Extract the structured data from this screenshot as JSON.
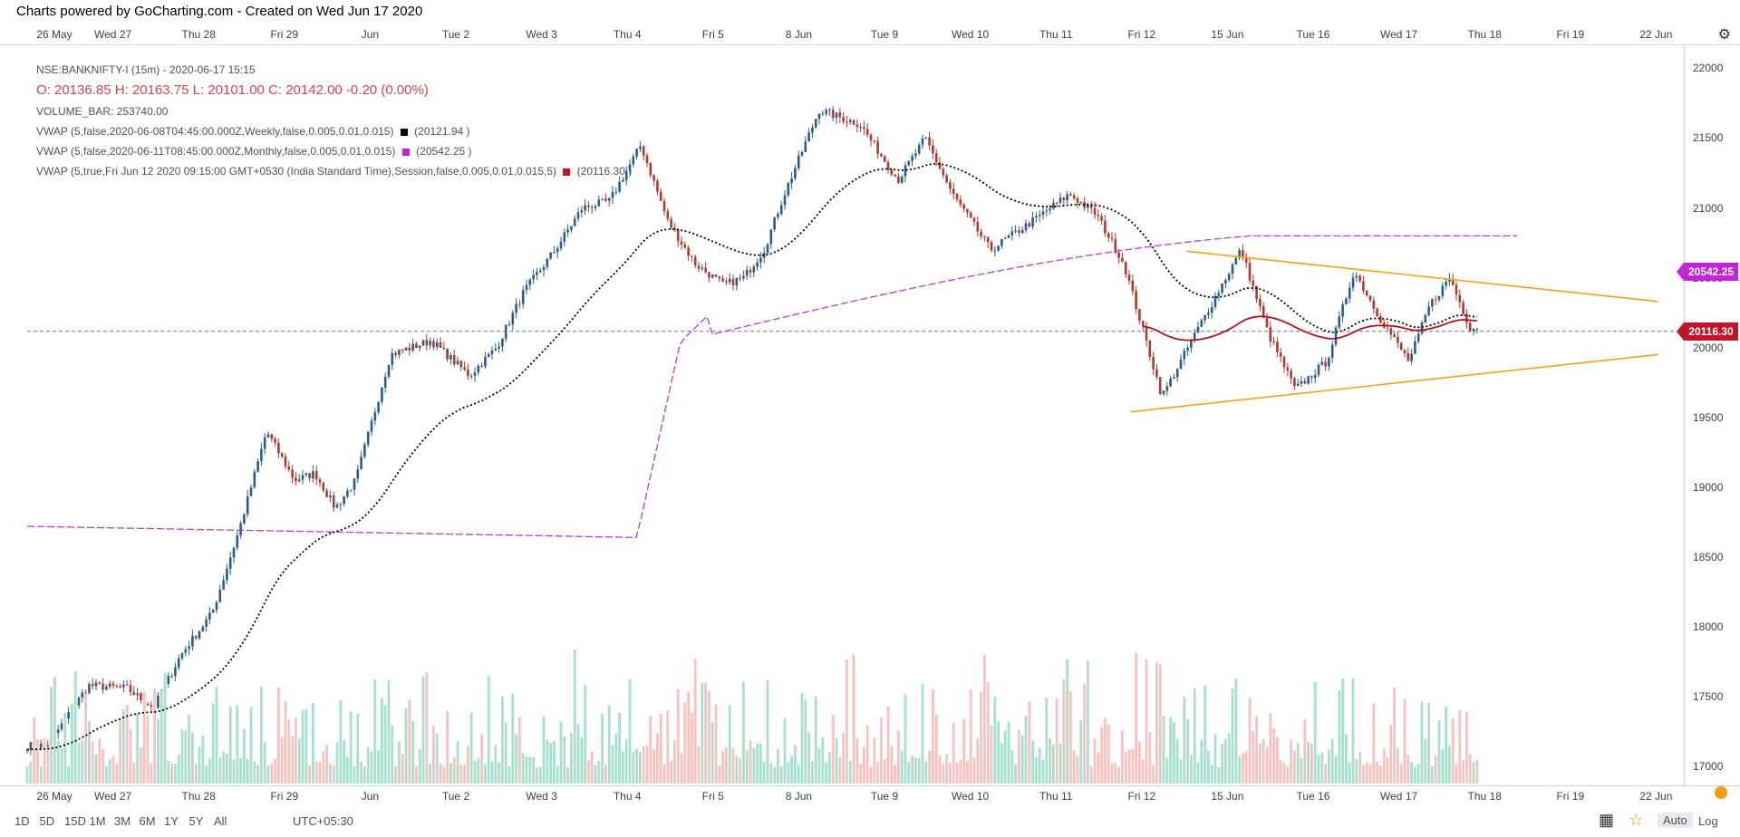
{
  "credit": "Charts powered by GoCharting.com - Created on Wed Jun 17 2020",
  "x_labels": [
    "26 May",
    "Wed 27",
    "Thu 28",
    "Fri 29",
    "Jun",
    "Tue 2",
    "Wed 3",
    "Thu 4",
    "Fri 5",
    "8 Jun",
    "Tue 9",
    "Wed 10",
    "Thu 11",
    "Fri 12",
    "15 Jun",
    "Tue 16",
    "Wed 17",
    "Thu 18",
    "Fri 19",
    "22 Jun"
  ],
  "legend": {
    "symbol": "NSE:BANKNIFTY-I (15m) - 2020-06-17 15:15",
    "ohlc": "O: 20136.85  H: 20163.75  L: 20101.00  C: 20142.00   -0.20  (0.00%)",
    "volume": "VOLUME_BAR: 253740.00",
    "vwap_weekly": "VWAP (5,false,2020-06-08T04:45:00.000Z,Weekly,false,0.005,0.01,0.015)",
    "vwap_weekly_val": "(20121.94 )",
    "vwap_monthly": "VWAP (5,false,2020-06-11T08:45:00.000Z,Monthly,false,0.005,0.01,0.015)",
    "vwap_monthly_val": "(20542.25 )",
    "vwap_session": "VWAP (5,true,Fri Jun 12 2020 09:15:00 GMT+0530 (India Standard Time),Session,false,0.005,0.01,0.015,5)",
    "vwap_session_val": "(20116.30 )"
  },
  "y_labels": [
    "22000",
    "21500",
    "21000",
    "20500",
    "20000",
    "19500",
    "19000",
    "18500",
    "18000",
    "17500",
    "17000"
  ],
  "badges": {
    "monthly": {
      "text": "20542.25",
      "color": "#c026d3"
    },
    "session": {
      "text": "20116.30",
      "color": "#c0152b"
    }
  },
  "toolbar": {
    "timeframes": [
      "1D",
      "5D",
      "15D",
      "1M",
      "3M",
      "6M",
      "1Y",
      "5Y",
      "All"
    ],
    "timezone": "UTC+05:30",
    "auto": "Auto",
    "log": "Log"
  },
  "icons": {
    "settings": "gear-icon",
    "grid": "grid-icon",
    "star": "star-icon"
  },
  "colors": {
    "up": "#26a69a",
    "down": "#ef5350",
    "candle_up": "#2a5d8a",
    "candle_down": "#b03a2e",
    "vol_up": "#a8e0cc",
    "vol_down": "#f7c3c0",
    "trend": "#f0a020",
    "vwap_weekly": "#000000",
    "vwap_monthly": "#b43fd1",
    "vwap_session": "#b0141f",
    "price_line": "#5b7fa6"
  },
  "chart_data": {
    "type": "candlestick",
    "instrument": "NSE:BANKNIFTY-I",
    "interval": "15m",
    "ylim": [
      16800,
      22100
    ],
    "last_close": 20142.0,
    "session_keypoints": [
      {
        "x": "26 May",
        "close": 17150
      },
      {
        "x": "26 May",
        "close": 17580
      },
      {
        "x": "Wed 27",
        "close": 17560
      },
      {
        "x": "Wed 27",
        "close": 17420
      },
      {
        "x": "Wed 27",
        "close": 17800
      },
      {
        "x": "Thu 28",
        "close": 18100
      },
      {
        "x": "Thu 28",
        "close": 18700
      },
      {
        "x": "Thu 28",
        "close": 19400
      },
      {
        "x": "Fri 29",
        "close": 19050
      },
      {
        "x": "Fri 29",
        "close": 19100
      },
      {
        "x": "Fri 29",
        "close": 18850
      },
      {
        "x": "Fri 29",
        "close": 19050
      },
      {
        "x": "Jun",
        "close": 19950
      },
      {
        "x": "Jun",
        "close": 20050
      },
      {
        "x": "Tue 2",
        "close": 19800
      },
      {
        "x": "Tue 2",
        "close": 20000
      },
      {
        "x": "Tue 2",
        "close": 20400
      },
      {
        "x": "Wed 3",
        "close": 20700
      },
      {
        "x": "Wed 3",
        "close": 21000
      },
      {
        "x": "Wed 3",
        "close": 21050
      },
      {
        "x": "Thu 4",
        "close": 21450
      },
      {
        "x": "Thu 4",
        "close": 20900
      },
      {
        "x": "Thu 4",
        "close": 20600
      },
      {
        "x": "Fri 5",
        "close": 20450
      },
      {
        "x": "Fri 5",
        "close": 20500
      },
      {
        "x": "Fri 5",
        "close": 20700
      },
      {
        "x": "Fri 5",
        "close": 21100
      },
      {
        "x": "8 Jun",
        "close": 21700
      },
      {
        "x": "8 Jun",
        "close": 21600
      },
      {
        "x": "Tue 9",
        "close": 21200
      },
      {
        "x": "Tue 9",
        "close": 21500
      },
      {
        "x": "Tue 9",
        "close": 21100
      },
      {
        "x": "Wed 10",
        "close": 20700
      },
      {
        "x": "Wed 10",
        "close": 20900
      },
      {
        "x": "Thu 11",
        "close": 21100
      },
      {
        "x": "Thu 11",
        "close": 20950
      },
      {
        "x": "Thu 11",
        "close": 20600
      },
      {
        "x": "Fri 12",
        "close": 19650
      },
      {
        "x": "Fri 12",
        "close": 20200
      },
      {
        "x": "15 Jun",
        "close": 20700
      },
      {
        "x": "15 Jun",
        "close": 20100
      },
      {
        "x": "15 Jun",
        "close": 19700
      },
      {
        "x": "Tue 16",
        "close": 19900
      },
      {
        "x": "Tue 16",
        "close": 20550
      },
      {
        "x": "Tue 16",
        "close": 20200
      },
      {
        "x": "Wed 17",
        "close": 19900
      },
      {
        "x": "Wed 17",
        "close": 20300
      },
      {
        "x": "Wed 17",
        "close": 20500
      },
      {
        "x": "Wed 17",
        "close": 20142
      }
    ],
    "trendlines": [
      {
        "name": "upper",
        "from": {
          "x": "15 Jun",
          "y": 20690
        },
        "to": {
          "x": "22 Jun",
          "y": 20330
        }
      },
      {
        "name": "lower",
        "from": {
          "x": "Fri 12",
          "y": 19540
        },
        "to": {
          "x": "22 Jun",
          "y": 19950
        }
      }
    ],
    "horizontal_line": 20116.3,
    "indicators": {
      "vwap_weekly_last": 20121.94,
      "vwap_monthly_last": 20542.25,
      "vwap_session_last": 20116.3,
      "volume_last": 253740.0
    }
  }
}
